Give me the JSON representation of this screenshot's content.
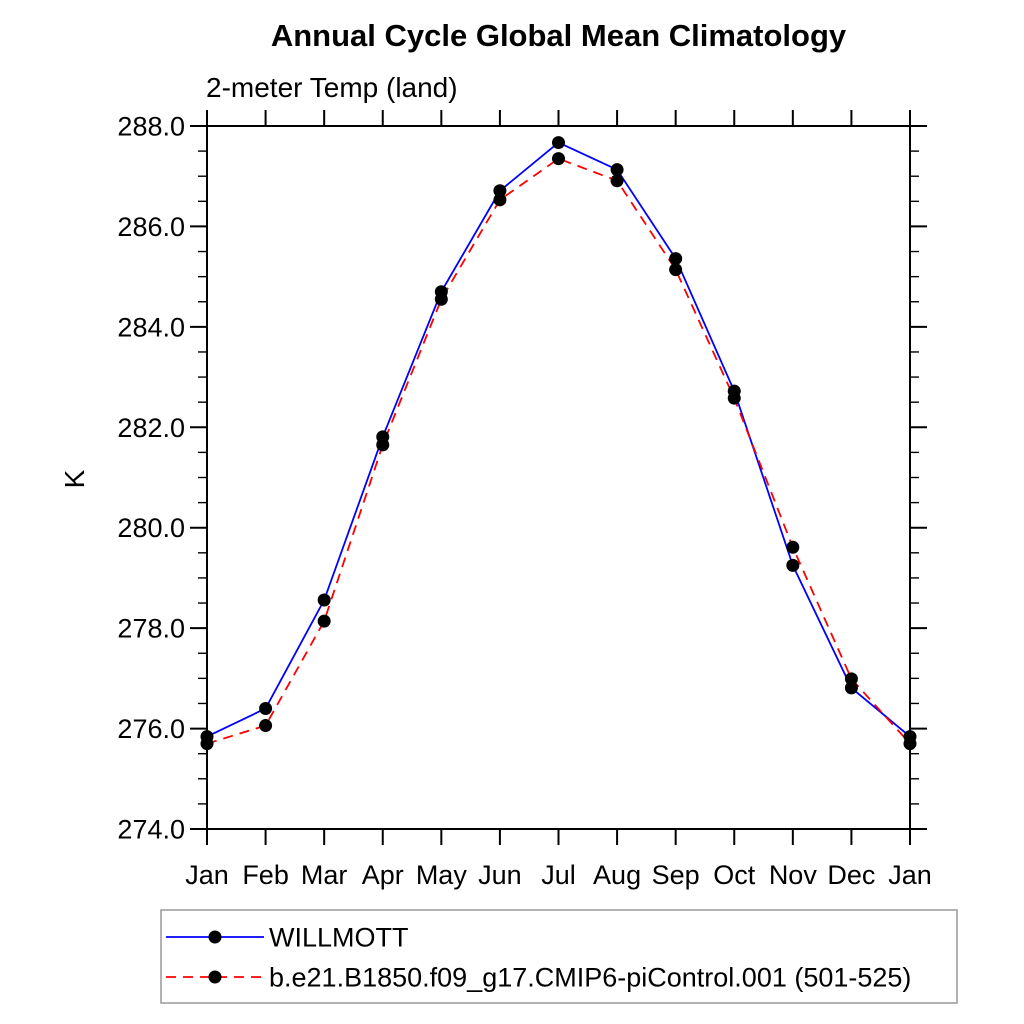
{
  "chart_data": {
    "type": "line",
    "title": "Annual Cycle Global Mean Climatology",
    "subtitle": "2-meter Temp (land)",
    "ylabel": "K",
    "x_categories": [
      "Jan",
      "Feb",
      "Mar",
      "Apr",
      "May",
      "Jun",
      "Jul",
      "Aug",
      "Sep",
      "Oct",
      "Nov",
      "Dec",
      "Jan"
    ],
    "ylim": [
      274.0,
      288.0
    ],
    "ytick_major_interval": 2.0,
    "ytick_minor_interval": 0.5,
    "ytick_label_format": "one_decimal",
    "grid": "off",
    "legend_position": "bottom-left-box",
    "axis_color": "#000000",
    "marker_color": "#000000",
    "series": [
      {
        "name": "WILLMOTT",
        "color": "#0000ff",
        "line_style": "solid",
        "marker": "filled-circle",
        "values": [
          275.84,
          276.4,
          278.56,
          281.81,
          284.7,
          286.71,
          287.67,
          287.13,
          285.36,
          282.72,
          279.25,
          276.81,
          275.84
        ]
      },
      {
        "name": "b.e21.B1850.f09_g17.CMIP6-piControl.001 (501-525)",
        "color": "#ff0000",
        "line_style": "dashed",
        "marker": "filled-circle",
        "values": [
          275.7,
          276.06,
          278.14,
          281.65,
          284.55,
          286.53,
          287.35,
          286.91,
          285.14,
          282.58,
          279.61,
          276.99,
          275.7
        ]
      }
    ]
  }
}
